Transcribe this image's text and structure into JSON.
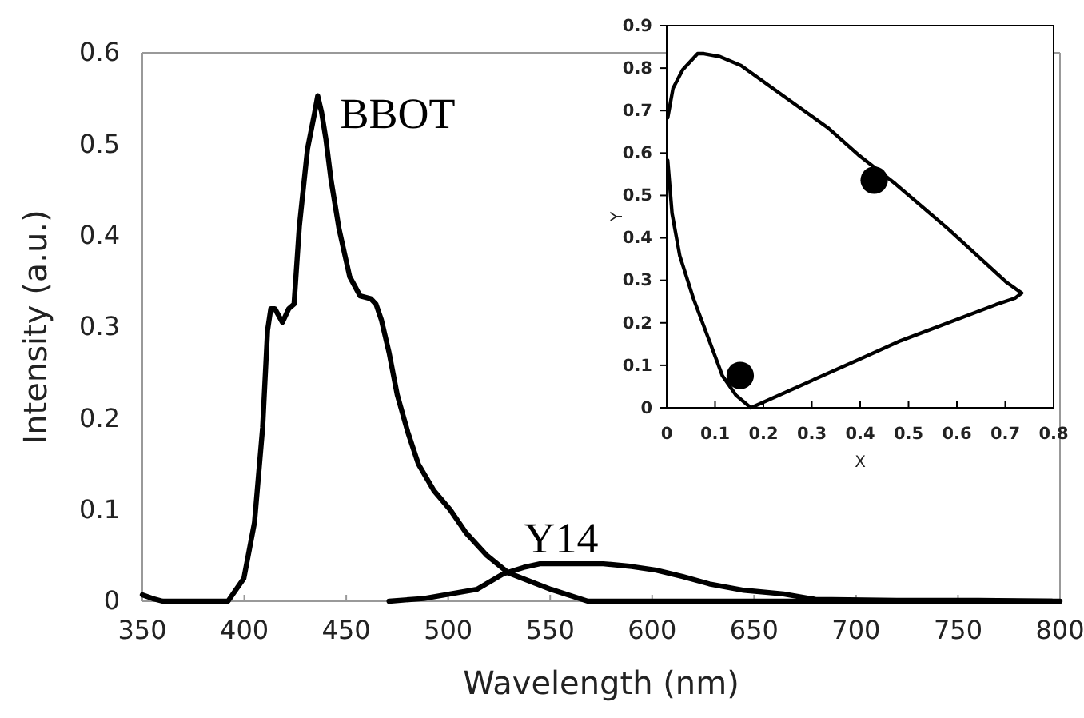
{
  "chart_data": [
    {
      "type": "line",
      "xlabel": "Wavelength (nm)",
      "ylabel": "Intensity (a.u.)",
      "xlim": [
        350,
        800
      ],
      "ylim": [
        0,
        0.6
      ],
      "xticks": [
        350,
        400,
        450,
        500,
        550,
        600,
        650,
        700,
        750,
        800
      ],
      "yticks": [
        0,
        0.1,
        0.2,
        0.3,
        0.4,
        0.5,
        0.6
      ],
      "grid": false,
      "legend": false,
      "marker": "none",
      "line_style": "solid",
      "series": [
        {
          "name": "BBOT",
          "color": "#000000",
          "x": [
            350,
            355,
            360,
            392,
            399.8,
            405,
            409,
            411.4,
            413,
            415,
            418.7,
            421.8,
            424.4,
            427,
            431,
            434.3,
            436,
            437.9,
            440,
            442.6,
            446.5,
            451.7,
            456.8,
            462,
            464.6,
            467.2,
            471,
            475,
            480.2,
            485.4,
            493,
            501,
            508.7,
            519,
            529.5,
            539.8,
            550.4,
            568.5,
            600,
            700,
            800
          ],
          "values": [
            0.007,
            0.003,
            0,
            0,
            0.025,
            0.086,
            0.19,
            0.296,
            0.32,
            0.32,
            0.305,
            0.32,
            0.325,
            0.41,
            0.495,
            0.532,
            0.553,
            0.535,
            0.506,
            0.46,
            0.407,
            0.355,
            0.334,
            0.331,
            0.325,
            0.308,
            0.272,
            0.226,
            0.185,
            0.15,
            0.121,
            0.1,
            0.075,
            0.05,
            0.031,
            0.022,
            0.013,
            0,
            0,
            0,
            0
          ]
        },
        {
          "name": "Y14",
          "color": "#000000",
          "x": [
            471,
            488,
            501,
            514,
            527,
            537,
            545,
            560,
            576,
            590,
            602,
            615,
            628,
            645,
            664.4,
            680,
            720,
            760,
            796
          ],
          "values": [
            0,
            0.003,
            0.008,
            0.013,
            0.03,
            0.037,
            0.041,
            0.041,
            0.041,
            0.038,
            0.034,
            0.027,
            0.019,
            0.012,
            0.008,
            0.002,
            0.001,
            0.001,
            0
          ]
        }
      ]
    },
    {
      "type": "line",
      "xlabel": "X",
      "ylabel": "Y",
      "xlim": [
        0,
        0.8
      ],
      "ylim": [
        0,
        0.9
      ],
      "xticks": [
        0,
        0.1,
        0.2,
        0.3,
        0.4,
        0.5,
        0.6,
        0.7,
        0.8
      ],
      "yticks": [
        0,
        0.1,
        0.2,
        0.3,
        0.4,
        0.5,
        0.6,
        0.7,
        0.8,
        0.9
      ],
      "grid": false,
      "legend": false,
      "series": [
        {
          "color": "#000000",
          "marker": "none",
          "x": [
            0.002,
            0.013,
            0.033,
            0.064,
            0.077,
            0.11,
            0.154,
            0.242,
            0.335,
            0.396,
            0.473,
            0.582,
            0.703,
            0.734,
            0.72,
            0.681,
            0.484,
            0.396,
            0.174,
            0.143,
            0.115,
            0.088,
            0.055,
            0.027,
            0.011,
            0.002
          ],
          "values": [
            0.683,
            0.752,
            0.796,
            0.834,
            0.834,
            0.827,
            0.806,
            0.734,
            0.658,
            0.596,
            0.527,
            0.421,
            0.295,
            0.27,
            0.258,
            0.243,
            0.158,
            0.113,
            0,
            0.03,
            0.076,
            0.158,
            0.258,
            0.358,
            0.458,
            0.583
          ]
        },
        {
          "type": "scatter",
          "color": "#000000",
          "marker": "circle",
          "x": [
            0.152,
            0.429
          ],
          "values": [
            0.076,
            0.536
          ]
        }
      ]
    }
  ]
}
